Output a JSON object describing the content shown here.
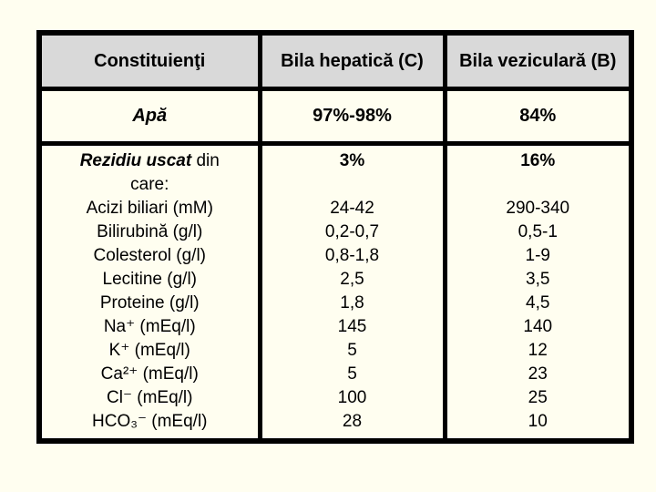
{
  "colors": {
    "page_background": "#FFFEF0",
    "header_background": "#D9D9D9",
    "border": "#000000",
    "text": "#000000"
  },
  "table": {
    "headers": {
      "constituents": "Constituienţi",
      "hepatic": "Bila hepatică (C)",
      "vesicular": "Bila veziculară (B)"
    },
    "water_row": {
      "constituent": "Apă",
      "hepatic": "97%-98%",
      "vesicular": "84%"
    },
    "residue_row": {
      "constituent_strong": "Rezidiu uscat",
      "constituent_rest": " din",
      "constituent_line2": "care:",
      "items": [
        "Acizi biliari (mM)",
        "Bilirubină (g/l)",
        "Colesterol (g/l)",
        "Lecitine (g/l)",
        "Proteine (g/l)",
        "Na⁺ (mEq/l)",
        "K⁺ (mEq/l)",
        "Ca²⁺ (mEq/l)",
        "Cl⁻ (mEq/l)",
        "HCO₃⁻ (mEq/l)"
      ],
      "hepatic_total": "3%",
      "hepatic_values": [
        "24-42",
        "0,2-0,7",
        "0,8-1,8",
        "2,5",
        "1,8",
        "145",
        "5",
        "5",
        "100",
        "28"
      ],
      "vesicular_total": "16%",
      "vesicular_values": [
        "290-340",
        "0,5-1",
        "1-9",
        "3,5",
        "4,5",
        "140",
        "12",
        "23",
        "25",
        "10"
      ]
    }
  }
}
